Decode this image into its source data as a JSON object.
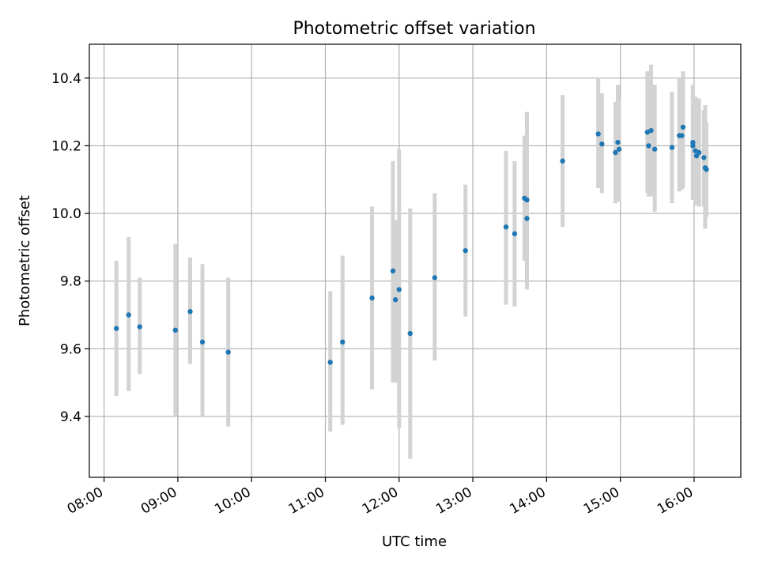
{
  "chart_data": {
    "type": "scatter",
    "title": "Photometric offset variation",
    "xlabel": "UTC time",
    "ylabel": "Photometric offset",
    "x_axis_type": "time",
    "x_tick_labels": [
      "08:00",
      "09:00",
      "10:00",
      "11:00",
      "12:00",
      "13:00",
      "14:00",
      "15:00",
      "16:00"
    ],
    "y_tick_labels": [
      "9.4",
      "9.6",
      "9.8",
      "10.0",
      "10.2",
      "10.4"
    ],
    "xlim": [
      "07:48",
      "16:38"
    ],
    "ylim": [
      9.22,
      10.5
    ],
    "grid": true,
    "colors": {
      "points": "#1f77b4",
      "error_bars": "#d3d3d3",
      "grid": "#b0b0b0"
    },
    "points": [
      {
        "x": "08:10",
        "y": 9.66,
        "ylow": 9.46,
        "yhigh": 9.86
      },
      {
        "x": "08:20",
        "y": 9.7,
        "ylow": 9.475,
        "yhigh": 9.93
      },
      {
        "x": "08:29",
        "y": 9.665,
        "ylow": 9.525,
        "yhigh": 9.81
      },
      {
        "x": "08:58",
        "y": 9.655,
        "ylow": 9.4,
        "yhigh": 9.91
      },
      {
        "x": "09:10",
        "y": 9.71,
        "ylow": 9.555,
        "yhigh": 9.87
      },
      {
        "x": "09:20",
        "y": 9.62,
        "ylow": 9.4,
        "yhigh": 9.85
      },
      {
        "x": "09:41",
        "y": 9.59,
        "ylow": 9.37,
        "yhigh": 9.81
      },
      {
        "x": "11:04",
        "y": 9.56,
        "ylow": 9.355,
        "yhigh": 9.77
      },
      {
        "x": "11:14",
        "y": 9.62,
        "ylow": 9.375,
        "yhigh": 9.875
      },
      {
        "x": "11:38",
        "y": 9.75,
        "ylow": 9.48,
        "yhigh": 10.02
      },
      {
        "x": "11:55",
        "y": 9.83,
        "ylow": 9.5,
        "yhigh": 10.155
      },
      {
        "x": "11:57",
        "y": 9.745,
        "ylow": 9.5,
        "yhigh": 9.98
      },
      {
        "x": "12:00",
        "y": 9.775,
        "ylow": 9.365,
        "yhigh": 10.19
      },
      {
        "x": "12:09",
        "y": 9.645,
        "ylow": 9.275,
        "yhigh": 10.015
      },
      {
        "x": "12:29",
        "y": 9.81,
        "ylow": 9.565,
        "yhigh": 10.06
      },
      {
        "x": "12:54",
        "y": 9.89,
        "ylow": 9.695,
        "yhigh": 10.085
      },
      {
        "x": "13:27",
        "y": 9.96,
        "ylow": 9.73,
        "yhigh": 10.185
      },
      {
        "x": "13:34",
        "y": 9.94,
        "ylow": 9.725,
        "yhigh": 10.155
      },
      {
        "x": "13:42",
        "y": 10.045,
        "ylow": 9.86,
        "yhigh": 10.23
      },
      {
        "x": "13:44",
        "y": 10.04,
        "ylow": 9.775,
        "yhigh": 10.3
      },
      {
        "x": "13:44",
        "y": 9.985,
        "ylow": 9.87,
        "yhigh": 10.1
      },
      {
        "x": "14:13",
        "y": 10.155,
        "ylow": 9.96,
        "yhigh": 10.35
      },
      {
        "x": "14:42",
        "y": 10.235,
        "ylow": 10.075,
        "yhigh": 10.4
      },
      {
        "x": "14:45",
        "y": 10.205,
        "ylow": 10.06,
        "yhigh": 10.355
      },
      {
        "x": "14:56",
        "y": 10.18,
        "ylow": 10.03,
        "yhigh": 10.33
      },
      {
        "x": "14:58",
        "y": 10.21,
        "ylow": 10.04,
        "yhigh": 10.38
      },
      {
        "x": "14:59",
        "y": 10.19,
        "ylow": 10.035,
        "yhigh": 10.34
      },
      {
        "x": "15:22",
        "y": 10.24,
        "ylow": 10.06,
        "yhigh": 10.42
      },
      {
        "x": "15:23",
        "y": 10.2,
        "ylow": 10.05,
        "yhigh": 10.36
      },
      {
        "x": "15:25",
        "y": 10.245,
        "ylow": 10.05,
        "yhigh": 10.44
      },
      {
        "x": "15:28",
        "y": 10.19,
        "ylow": 10.005,
        "yhigh": 10.38
      },
      {
        "x": "15:42",
        "y": 10.195,
        "ylow": 10.03,
        "yhigh": 10.36
      },
      {
        "x": "15:48",
        "y": 10.23,
        "ylow": 10.065,
        "yhigh": 10.4
      },
      {
        "x": "15:50",
        "y": 10.23,
        "ylow": 10.07,
        "yhigh": 10.39
      },
      {
        "x": "15:51",
        "y": 10.255,
        "ylow": 10.075,
        "yhigh": 10.42
      },
      {
        "x": "15:59",
        "y": 10.21,
        "ylow": 10.05,
        "yhigh": 10.38
      },
      {
        "x": "15:59",
        "y": 10.2,
        "ylow": 10.04,
        "yhigh": 10.36
      },
      {
        "x": "16:01",
        "y": 10.185,
        "ylow": 10.03,
        "yhigh": 10.345
      },
      {
        "x": "16:02",
        "y": 10.17,
        "ylow": 10.025,
        "yhigh": 10.33
      },
      {
        "x": "16:04",
        "y": 10.18,
        "ylow": 10.02,
        "yhigh": 10.34
      },
      {
        "x": "16:08",
        "y": 10.165,
        "ylow": 10.02,
        "yhigh": 10.305
      },
      {
        "x": "16:09",
        "y": 10.135,
        "ylow": 9.955,
        "yhigh": 10.32
      },
      {
        "x": "16:10",
        "y": 10.13,
        "ylow": 9.99,
        "yhigh": 10.27
      }
    ]
  }
}
